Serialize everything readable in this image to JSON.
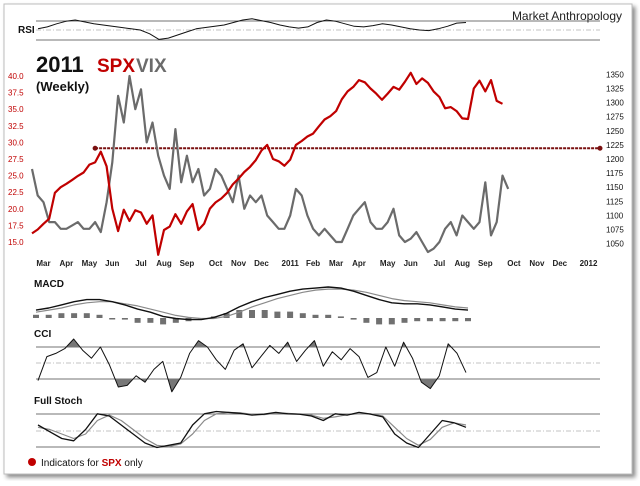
{
  "header": {
    "brand": "Market Anthropology",
    "title_year": "2011",
    "title_spx": "SPX",
    "title_vix": "VIX",
    "subtitle": "(Weekly)"
  },
  "panels": {
    "rsi_label": "RSI",
    "macd_label": "MACD",
    "cci_label": "CCI",
    "stoch_label": "Full Stoch"
  },
  "footer": {
    "prefix": "Indicators for ",
    "spx": "SPX",
    "suffix": " only"
  },
  "colors": {
    "spx": "#c00000",
    "vix": "#6b6b6b",
    "macd_signal": "#8a8a8a",
    "hist": "#707070",
    "bullet": "#c00000"
  },
  "chart_data": [
    {
      "type": "line",
      "title": "2011 SPX VIX (Weekly)",
      "x_ticks": [
        "Mar",
        "Apr",
        "May",
        "Jun",
        "Jul",
        "Aug",
        "Sep",
        "Oct",
        "Nov",
        "Dec",
        "2011",
        "Feb",
        "Mar",
        "Apr",
        "May",
        "Jun",
        "Jul",
        "Aug",
        "Sep",
        "Oct",
        "Nov",
        "Dec",
        "2012"
      ],
      "x_tick_weeks": [
        2,
        6,
        10,
        14,
        19,
        23,
        27,
        32,
        36,
        40,
        45,
        49,
        53,
        57,
        62,
        66,
        71,
        75,
        79,
        84,
        88,
        92,
        97
      ],
      "y_left": {
        "label": "VIX",
        "ticks": [
          15,
          17.5,
          20,
          22.5,
          25,
          27.5,
          30,
          32.5,
          35,
          37.5,
          40
        ],
        "ylim": [
          13.5,
          41.5
        ]
      },
      "y_right": {
        "label": "SPX",
        "ticks": [
          1050,
          1075,
          1100,
          1125,
          1150,
          1175,
          1200,
          1225,
          1250,
          1275,
          1300,
          1325,
          1350
        ],
        "ylim": [
          1035,
          1365
        ]
      },
      "hline": {
        "axis": "right",
        "value": 1219,
        "week_range": [
          11,
          99
        ]
      },
      "series": [
        {
          "name": "SPX",
          "axis": "right",
          "values": [
            1068,
            1075,
            1085,
            1094,
            1140,
            1150,
            1156,
            1163,
            1170,
            1176,
            1190,
            1194,
            1213,
            1187,
            1112,
            1072,
            1110,
            1090,
            1109,
            1105,
            1085,
            1100,
            1030,
            1074,
            1080,
            1102,
            1085,
            1107,
            1120,
            1074,
            1085,
            1112,
            1123,
            1130,
            1140,
            1155,
            1165,
            1177,
            1186,
            1198,
            1215,
            1225,
            1200,
            1196,
            1188,
            1199,
            1225,
            1232,
            1240,
            1245,
            1258,
            1270,
            1276,
            1285,
            1306,
            1320,
            1328,
            1340,
            1336,
            1325,
            1316,
            1305,
            1316,
            1328,
            1323,
            1337,
            1353,
            1333,
            1343,
            1335,
            1320,
            1310,
            1290,
            1292,
            1285,
            1272,
            1271,
            1325,
            1339,
            1320,
            1340,
            1303,
            1298
          ]
        },
        {
          "name": "VIX",
          "axis": "left",
          "values": [
            26,
            22,
            21,
            18,
            18,
            17,
            17,
            17.5,
            18,
            17,
            17,
            18,
            16.5,
            21,
            27,
            37,
            33,
            40,
            35,
            38,
            30,
            33,
            28,
            25,
            23,
            32,
            24,
            28,
            24,
            26,
            22,
            23,
            26,
            25,
            23,
            21,
            25,
            20,
            22,
            21,
            22,
            19,
            18,
            17,
            17,
            19,
            23,
            22,
            19,
            17,
            16,
            17,
            16,
            15,
            15,
            17,
            19,
            20,
            21,
            18,
            17,
            17,
            18,
            20,
            16,
            15,
            15.5,
            16.5,
            15,
            13.5,
            14,
            15,
            17,
            18,
            16,
            19,
            18,
            17,
            18,
            24,
            16,
            18,
            25,
            23
          ]
        }
      ]
    },
    {
      "type": "line",
      "title": "RSI",
      "values": [
        52,
        55,
        60,
        64,
        66,
        63,
        60,
        58,
        56,
        54,
        52,
        50,
        44,
        35,
        37,
        42,
        47,
        52,
        54,
        56,
        58,
        62,
        66,
        68,
        65,
        62,
        58,
        55,
        53,
        55,
        62,
        66,
        64,
        60,
        56,
        55,
        57,
        60,
        58,
        55,
        52,
        50,
        49,
        52,
        56,
        61,
        62
      ]
    },
    {
      "type": "line",
      "title": "MACD",
      "series": [
        {
          "name": "MACD",
          "values": [
            -2,
            0,
            3,
            6,
            8,
            8,
            6,
            3,
            -1,
            -4,
            -8,
            -10,
            -11,
            -11,
            -9,
            -5,
            1,
            6,
            10,
            13,
            16,
            18,
            19,
            20,
            19,
            16,
            12,
            8,
            5,
            4,
            4,
            3,
            1,
            -1,
            -2
          ]
        },
        {
          "name": "Signal",
          "values": [
            -4,
            -2,
            0,
            3,
            5,
            6,
            6,
            4,
            2,
            -1,
            -4,
            -7,
            -9,
            -10,
            -10,
            -8,
            -4,
            1,
            5,
            9,
            12,
            15,
            17,
            18,
            18,
            17,
            15,
            12,
            9,
            7,
            6,
            5,
            3,
            1,
            0
          ]
        },
        {
          "name": "Histogram",
          "values": [
            2,
            2,
            3,
            3,
            3,
            2,
            0,
            -1,
            -3,
            -3,
            -4,
            -3,
            -2,
            -1,
            1,
            3,
            5,
            5,
            5,
            4,
            4,
            3,
            2,
            2,
            1,
            -1,
            -3,
            -4,
            -4,
            -3,
            -2,
            -2,
            -2,
            -2,
            -2
          ]
        }
      ]
    },
    {
      "type": "line",
      "title": "CCI",
      "values": [
        -110,
        40,
        60,
        90,
        150,
        80,
        30,
        100,
        -10,
        -150,
        -140,
        -80,
        -120,
        -40,
        10,
        -180,
        -90,
        60,
        140,
        100,
        20,
        -40,
        80,
        120,
        -30,
        40,
        110,
        60,
        130,
        10,
        80,
        140,
        -20,
        70,
        20,
        90,
        40,
        -90,
        -60,
        100,
        -20,
        130,
        30,
        -120,
        -160,
        -80,
        120,
        60,
        -60
      ]
    },
    {
      "type": "line",
      "title": "Full Stoch",
      "series": [
        {
          "name": "%K",
          "values": [
            60,
            45,
            30,
            25,
            50,
            85,
            80,
            60,
            40,
            20,
            10,
            15,
            20,
            60,
            85,
            90,
            88,
            86,
            82,
            84,
            88,
            85,
            84,
            80,
            70,
            85,
            82,
            88,
            84,
            78,
            40,
            20,
            10,
            40,
            70,
            65,
            55
          ]
        },
        {
          "name": "%D",
          "values": [
            55,
            50,
            40,
            30,
            40,
            70,
            82,
            70,
            50,
            30,
            15,
            12,
            18,
            40,
            70,
            85,
            88,
            87,
            84,
            83,
            86,
            86,
            84,
            82,
            75,
            78,
            83,
            85,
            85,
            80,
            55,
            30,
            15,
            28,
            55,
            65,
            60
          ]
        }
      ]
    }
  ]
}
